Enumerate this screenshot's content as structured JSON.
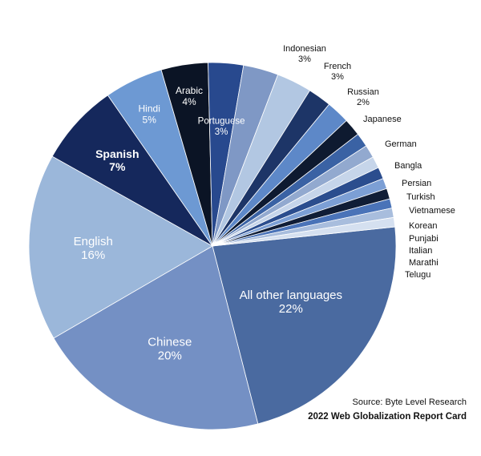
{
  "chart_data": {
    "type": "pie",
    "title": "",
    "slices": [
      {
        "label": "All other languages",
        "value": 22,
        "pct_label": "22%",
        "color": "#4a6aa0"
      },
      {
        "label": "Chinese",
        "value": 20,
        "pct_label": "20%",
        "color": "#7490c4"
      },
      {
        "label": "English",
        "value": 16,
        "pct_label": "16%",
        "color": "#9bb7da"
      },
      {
        "label": "Spanish",
        "value": 7,
        "pct_label": "7%",
        "color": "#15285c"
      },
      {
        "label": "Hindi",
        "value": 5,
        "pct_label": "5%",
        "color": "#6d99d3"
      },
      {
        "label": "Arabic",
        "value": 4,
        "pct_label": "4%",
        "color": "#0b1425"
      },
      {
        "label": "Portuguese",
        "value": 3,
        "pct_label": "3%",
        "color": "#28498e"
      },
      {
        "label": "Indonesian",
        "value": 3,
        "pct_label": "3%",
        "color": "#7f98c5"
      },
      {
        "label": "French",
        "value": 3,
        "pct_label": "3%",
        "color": "#b2c7e2"
      },
      {
        "label": "Russian",
        "value": 2,
        "pct_label": "2%",
        "color": "#1d3567"
      },
      {
        "label": "Japanese",
        "value": 2,
        "pct_label": "",
        "color": "#5d88c8"
      },
      {
        "label": "German",
        "value": 1.5,
        "pct_label": "",
        "color": "#0e1a30"
      },
      {
        "label": "Bangla",
        "value": 1.2,
        "pct_label": "",
        "color": "#3a62a4"
      },
      {
        "label": "Persian",
        "value": 1.1,
        "pct_label": "",
        "color": "#92a9cf"
      },
      {
        "label": "Turkish",
        "value": 1,
        "pct_label": "",
        "color": "#c6d5ea"
      },
      {
        "label": "Vietnamese",
        "value": 1,
        "pct_label": "",
        "color": "#2b4d8e"
      },
      {
        "label": "Korean",
        "value": 0.9,
        "pct_label": "",
        "color": "#7c9fd5"
      },
      {
        "label": "Punjabi",
        "value": 0.9,
        "pct_label": "",
        "color": "#101d36"
      },
      {
        "label": "Italian",
        "value": 0.8,
        "pct_label": "",
        "color": "#4a73b8"
      },
      {
        "label": "Marathi",
        "value": 0.8,
        "pct_label": "",
        "color": "#a8bddd"
      },
      {
        "label": "Telugu",
        "value": 0.8,
        "pct_label": "",
        "color": "#d5e0f0"
      }
    ]
  },
  "source": "Source: Byte Level Research",
  "report": "2022 Web Globalization Report Card"
}
